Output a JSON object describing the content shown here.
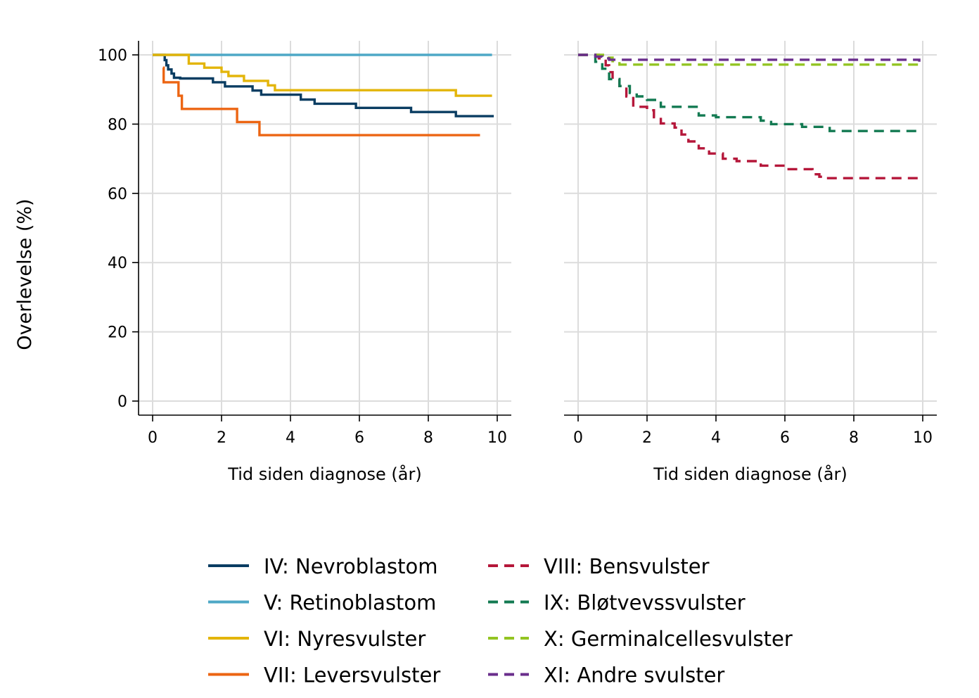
{
  "figure": {
    "ylabel": "Overlevelse (%)"
  },
  "chart_data": [
    {
      "type": "line",
      "panel": "left",
      "xlabel": "Tid siden diagnose (år)",
      "ylabel": "Overlevelse (%)",
      "xlim": [
        0,
        10
      ],
      "ylim": [
        0,
        100
      ],
      "xticks": [
        "0",
        "2",
        "4",
        "6",
        "8",
        "10"
      ],
      "yticks": [
        "0",
        "20",
        "40",
        "60",
        "80",
        "100"
      ],
      "grid": true,
      "step": true,
      "series": [
        {
          "name": "IV: Nevroblastom",
          "color": "#0a3d62",
          "dash": "solid",
          "x": [
            0,
            0.35,
            0.4,
            0.45,
            0.55,
            0.62,
            0.8,
            1.75,
            2.1,
            2.9,
            3.15,
            4.3,
            4.7,
            5.9,
            7.5,
            8.8,
            9.9
          ],
          "y": [
            100,
            98.5,
            97,
            95.8,
            94.6,
            93.4,
            93.2,
            92.1,
            90.9,
            89.7,
            88.5,
            87.1,
            85.9,
            84.7,
            83.5,
            82.3,
            82.3
          ]
        },
        {
          "name": "V: Retinoblastom",
          "color": "#4ea8c6",
          "dash": "solid",
          "x": [
            0,
            9.85
          ],
          "y": [
            100,
            100
          ]
        },
        {
          "name": "VI: Nyresvulster",
          "color": "#e3b50a",
          "dash": "solid",
          "x": [
            0,
            1.05,
            1.5,
            2.0,
            2.2,
            2.65,
            3.35,
            3.55,
            8.8,
            9.85
          ],
          "y": [
            100,
            97.5,
            96.3,
            95.1,
            93.9,
            92.5,
            91.2,
            89.8,
            88.2,
            88.2
          ]
        },
        {
          "name": "VII: Leversvulster",
          "color": "#ec6513",
          "dash": "solid",
          "x": [
            0.3,
            0.32,
            0.75,
            0.85,
            2.45,
            3.1,
            9.5
          ],
          "y": [
            96.3,
            92.1,
            88.2,
            84.4,
            80.6,
            76.8,
            76.8
          ]
        }
      ]
    },
    {
      "type": "line",
      "panel": "right",
      "xlabel": "Tid siden diagnose (år)",
      "ylabel": "",
      "xlim": [
        0,
        10
      ],
      "ylim": [
        0,
        100
      ],
      "xticks": [
        "0",
        "2",
        "4",
        "6",
        "8",
        "10"
      ],
      "grid": true,
      "step": true,
      "series": [
        {
          "name": "VIII: Bensvulster",
          "color": "#b5173a",
          "dash": "dashed",
          "x": [
            0,
            0.6,
            0.8,
            0.9,
            1.0,
            1.2,
            1.4,
            1.6,
            2.0,
            2.2,
            2.4,
            2.8,
            3.0,
            3.2,
            3.5,
            3.8,
            4.2,
            4.6,
            5.3,
            6.0,
            6.8,
            7.0,
            7.2,
            9.9
          ],
          "y": [
            100,
            99,
            97,
            95,
            93,
            91,
            88,
            85,
            84,
            82,
            80.2,
            79,
            77,
            75,
            73,
            71.5,
            70,
            69.3,
            68,
            67,
            65.5,
            64.8,
            64.4,
            64.4
          ]
        },
        {
          "name": "IX: Bløtvevssvulster",
          "color": "#137a52",
          "dash": "dashed",
          "x": [
            0,
            0.5,
            0.7,
            0.9,
            1.2,
            1.5,
            1.7,
            2.0,
            2.4,
            3.5,
            4.0,
            5.3,
            5.6,
            6.5,
            7.3,
            9.9
          ],
          "y": [
            100,
            98,
            96,
            93,
            91,
            89,
            88,
            87,
            85,
            82.5,
            82,
            81,
            80,
            79.2,
            78,
            77.2
          ]
        },
        {
          "name": "X: Germinalcellesvulster",
          "color": "#93c422",
          "dash": "dashed",
          "x": [
            0,
            0.85,
            1.0,
            1.2,
            9.9
          ],
          "y": [
            100,
            99.2,
            98.2,
            97.2,
            97.2
          ]
        },
        {
          "name": "XI: Andre svulster",
          "color": "#6a2e8c",
          "dash": "dashed",
          "x": [
            0,
            0.5,
            0.7,
            0.9,
            9.9
          ],
          "y": [
            100,
            99.5,
            99,
            98.6,
            98
          ]
        }
      ]
    }
  ],
  "legend": {
    "placement": "bottom",
    "left_column": [
      {
        "label": "IV: Nevroblastom",
        "color": "#0a3d62",
        "dash": "solid"
      },
      {
        "label": "V: Retinoblastom",
        "color": "#4ea8c6",
        "dash": "solid"
      },
      {
        "label": "VI: Nyresvulster",
        "color": "#e3b50a",
        "dash": "solid"
      },
      {
        "label": "VII: Leversvulster",
        "color": "#ec6513",
        "dash": "solid"
      }
    ],
    "right_column": [
      {
        "label": "VIII: Bensvulster",
        "color": "#b5173a",
        "dash": "dashed"
      },
      {
        "label": "IX: Bløtvevssvulster",
        "color": "#137a52",
        "dash": "dashed"
      },
      {
        "label": "X: Germinalcellesvulster",
        "color": "#93c422",
        "dash": "dashed"
      },
      {
        "label": "XI: Andre svulster",
        "color": "#6a2e8c",
        "dash": "dashed"
      }
    ]
  }
}
